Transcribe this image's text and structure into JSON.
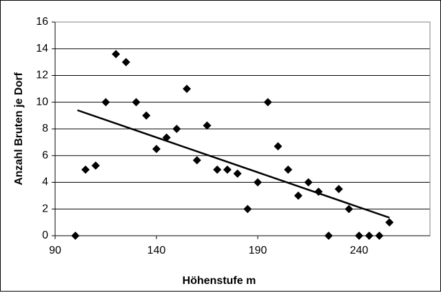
{
  "chart_data": {
    "type": "scatter",
    "x_label": "Höhenstufe m",
    "y_label": "Anzahl Bruten je Dorf",
    "x": [
      100,
      105,
      110,
      115,
      120,
      125,
      130,
      135,
      140,
      145,
      150,
      155,
      160,
      165,
      170,
      175,
      180,
      185,
      190,
      195,
      200,
      205,
      210,
      215,
      220,
      225,
      230,
      235,
      240,
      245,
      250,
      255
    ],
    "values": [
      0,
      4.95,
      5.25,
      10,
      13.6,
      13,
      10,
      9,
      6.5,
      7.35,
      8,
      11,
      5.65,
      8.25,
      4.95,
      4.95,
      4.65,
      2,
      4,
      10,
      6.7,
      4.95,
      3,
      4,
      3.3,
      0,
      3.5,
      2,
      0,
      0,
      0,
      1
    ],
    "color": "#000000",
    "trendline": {
      "x": [
        101,
        255
      ],
      "y": [
        9.4,
        1.35
      ]
    },
    "xlim": [
      90,
      275
    ],
    "xticks": [
      90,
      140,
      190,
      240
    ],
    "ylim": [
      0,
      16
    ],
    "yticks": [
      0,
      2,
      4,
      6,
      8,
      10,
      12,
      14,
      16
    ],
    "grid": true
  }
}
